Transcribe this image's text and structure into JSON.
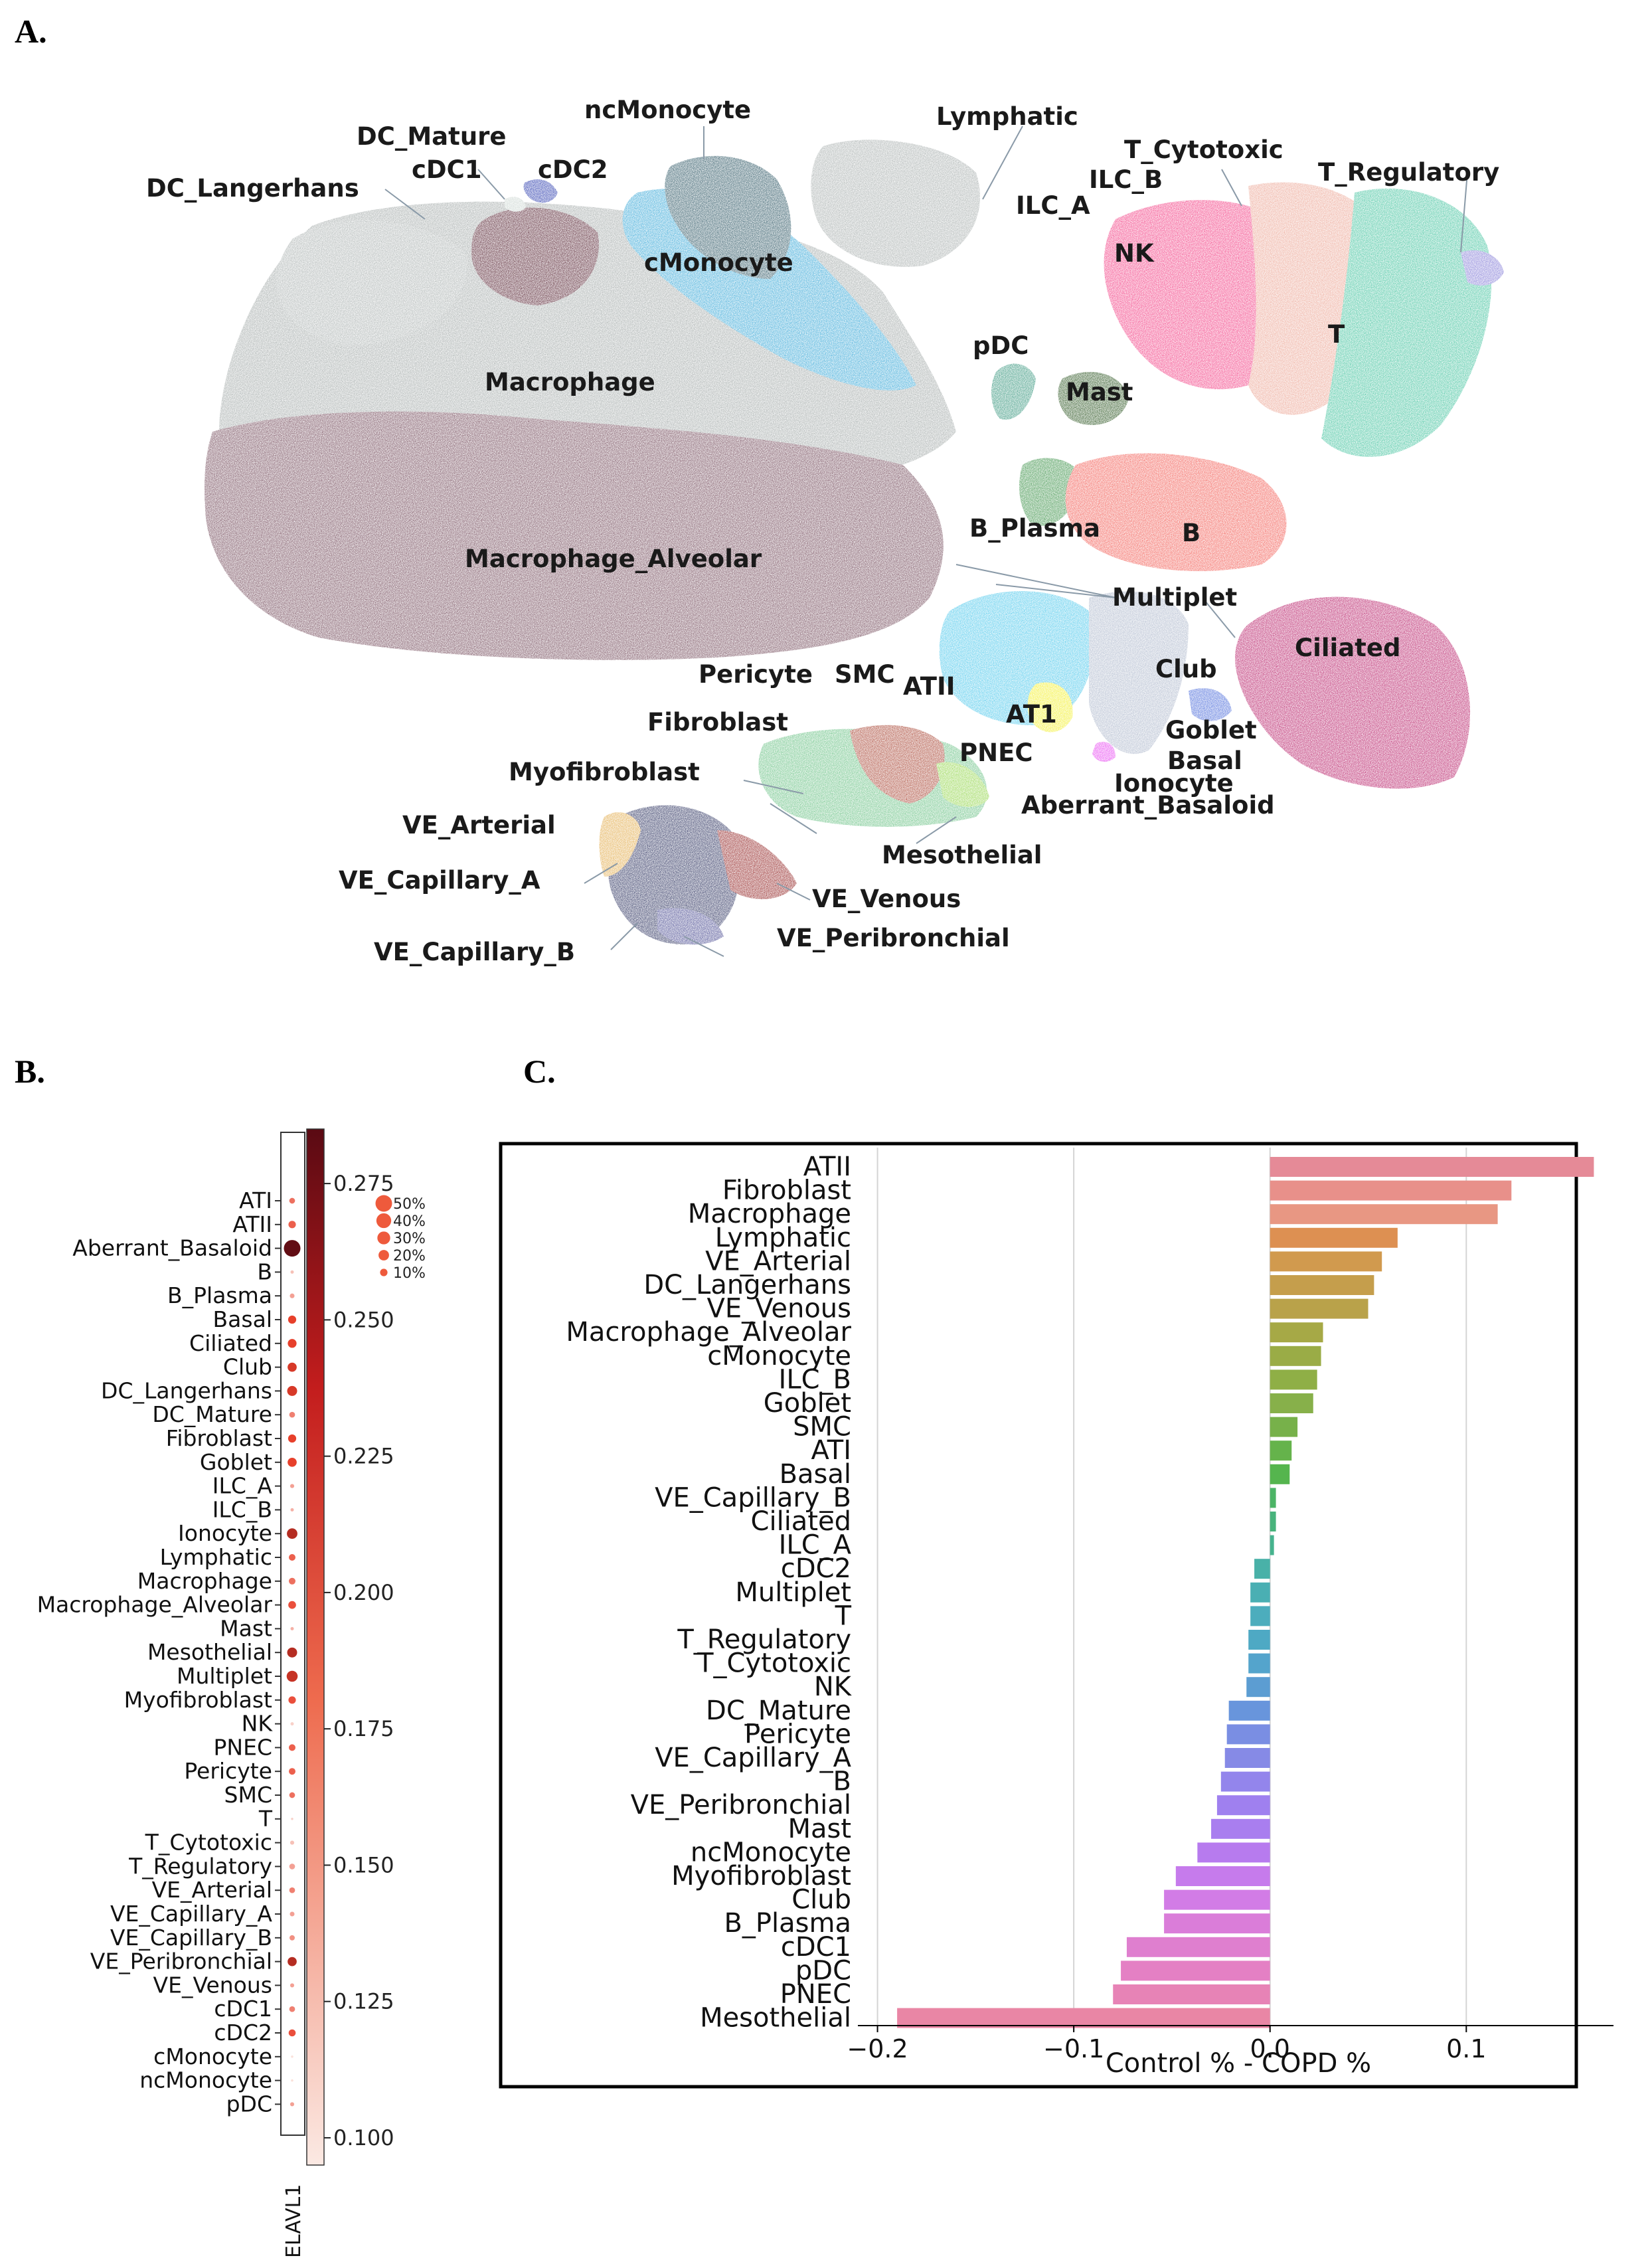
{
  "panels": {
    "a": "A.",
    "b": "B.",
    "c": "C."
  },
  "umap": {
    "labels": [
      "ncMonocyte",
      "DC_Mature",
      "Lymphatic",
      "cDC1",
      "cDC2",
      "T_Cytotoxic",
      "DC_Langerhans",
      "ILC_B",
      "T_Regulatory",
      "ILC_A",
      "NK",
      "cMonocyte",
      "T",
      "pDC",
      "Macrophage",
      "Mast",
      "B_Plasma",
      "B",
      "Macrophage_Alveolar",
      "Multiplet",
      "Ciliated",
      "Club",
      "Pericyte",
      "SMC",
      "ATII",
      "AT1",
      "Fibroblast",
      "Goblet",
      "PNEC",
      "Basal",
      "Myofibroblast",
      "Ionocyte",
      "Aberrant_Basaloid",
      "VE_Arterial",
      "Mesothelial",
      "VE_Capillary_A",
      "VE_Venous",
      "VE_Capillary_B",
      "VE_Peribronchial"
    ]
  },
  "chart_data": [
    {
      "type": "dotplot",
      "gene": "ELAVL1",
      "categories": [
        "ATI",
        "ATII",
        "Aberrant_Basaloid",
        "B",
        "B_Plasma",
        "Basal",
        "Ciliated",
        "Club",
        "DC_Langerhans",
        "DC_Mature",
        "Fibroblast",
        "Goblet",
        "ILC_A",
        "ILC_B",
        "Ionocyte",
        "Lymphatic",
        "Macrophage",
        "Macrophage_Alveolar",
        "Mast",
        "Mesothelial",
        "Multiplet",
        "Myofibroblast",
        "NK",
        "PNEC",
        "Pericyte",
        "SMC",
        "T",
        "T_Cytotoxic",
        "T_Regulatory",
        "VE_Arterial",
        "VE_Capillary_A",
        "VE_Capillary_B",
        "VE_Peribronchial",
        "VE_Venous",
        "cDC1",
        "cDC2",
        "cMonocyte",
        "ncMonocyte",
        "pDC"
      ],
      "pct_expressed": [
        6,
        10,
        50,
        2,
        4,
        12,
        14,
        15,
        18,
        6,
        12,
        15,
        3,
        2,
        20,
        8,
        8,
        11,
        2,
        18,
        22,
        10,
        2,
        8,
        8,
        6,
        1,
        3,
        6,
        6,
        4,
        5,
        15,
        3,
        6,
        9,
        1,
        1,
        3
      ],
      "mean_expression": [
        0.17,
        0.18,
        0.28,
        0.12,
        0.14,
        0.2,
        0.2,
        0.21,
        0.21,
        0.16,
        0.2,
        0.2,
        0.14,
        0.13,
        0.23,
        0.18,
        0.17,
        0.19,
        0.13,
        0.23,
        0.22,
        0.19,
        0.11,
        0.18,
        0.18,
        0.17,
        0.11,
        0.12,
        0.14,
        0.16,
        0.14,
        0.15,
        0.23,
        0.14,
        0.16,
        0.19,
        0.1,
        0.1,
        0.14
      ],
      "size_legend": [
        "50%",
        "40%",
        "30%",
        "20%",
        "10%"
      ],
      "colorbar_ticks": [
        "0.275",
        "0.250",
        "0.225",
        "0.200",
        "0.175",
        "0.150",
        "0.125",
        "0.100"
      ],
      "color_range": [
        0.095,
        0.285
      ],
      "colors": {
        "low": "#fbe9e3",
        "mid": "#e8402b",
        "high": "#5a0a13"
      }
    },
    {
      "type": "bar",
      "orientation": "horizontal",
      "categories": [
        "ATII",
        "Fibroblast",
        "Macrophage",
        "Lymphatic",
        "VE_Arterial",
        "DC_Langerhans",
        "VE_Venous",
        "Macrophage_Alveolar",
        "cMonocyte",
        "ILC_B",
        "Goblet",
        "SMC",
        "ATI",
        "Basal",
        "VE_Capillary_B",
        "Ciliated",
        "ILC_A",
        "cDC2",
        "Multiplet",
        "T",
        "T_Regulatory",
        "T_Cytotoxic",
        "NK",
        "DC_Mature",
        "Pericyte",
        "VE_Capillary_A",
        "B",
        "VE_Peribronchial",
        "Mast",
        "ncMonocyte",
        "Myofibroblast",
        "Club",
        "B_Plasma",
        "cDC1",
        "pDC",
        "PNEC",
        "Mesothelial"
      ],
      "values": [
        0.165,
        0.123,
        0.116,
        0.065,
        0.057,
        0.053,
        0.05,
        0.027,
        0.026,
        0.024,
        0.022,
        0.014,
        0.011,
        0.01,
        0.003,
        0.003,
        0.002,
        -0.008,
        -0.01,
        -0.01,
        -0.011,
        -0.011,
        -0.012,
        -0.021,
        -0.022,
        -0.023,
        -0.025,
        -0.027,
        -0.03,
        -0.037,
        -0.048,
        -0.054,
        -0.054,
        -0.073,
        -0.076,
        -0.08,
        -0.19
      ],
      "colors": [
        "#e58a97",
        "#e8908a",
        "#e89783",
        "#dd9052",
        "#d19a4e",
        "#c59e4c",
        "#b9a24a",
        "#a6a946",
        "#9aac46",
        "#8faf46",
        "#87b04a",
        "#77b14a",
        "#65b34b",
        "#55b54e",
        "#4cb466",
        "#48b37c",
        "#46b38e",
        "#49b1a8",
        "#4aafb3",
        "#4cadbd",
        "#4ea9c4",
        "#54a4cc",
        "#5c9dd2",
        "#6895dc",
        "#7a8ee3",
        "#868ae6",
        "#9385ec",
        "#9f80ef",
        "#a97eef",
        "#b77bee",
        "#c67bec",
        "#d27ce6",
        "#da7dd9",
        "#df7fcf",
        "#e480c4",
        "#e783b6",
        "#e986a5"
      ],
      "title": "",
      "xlabel": "Control % - COPD %",
      "ylabel": "",
      "xlim": [
        -0.21,
        0.175
      ],
      "xticks": [
        -0.2,
        -0.1,
        0.0,
        0.1
      ],
      "xtick_labels": [
        "−0.2",
        "−0.1",
        "0.0",
        "0.1"
      ],
      "grid": true
    }
  ]
}
